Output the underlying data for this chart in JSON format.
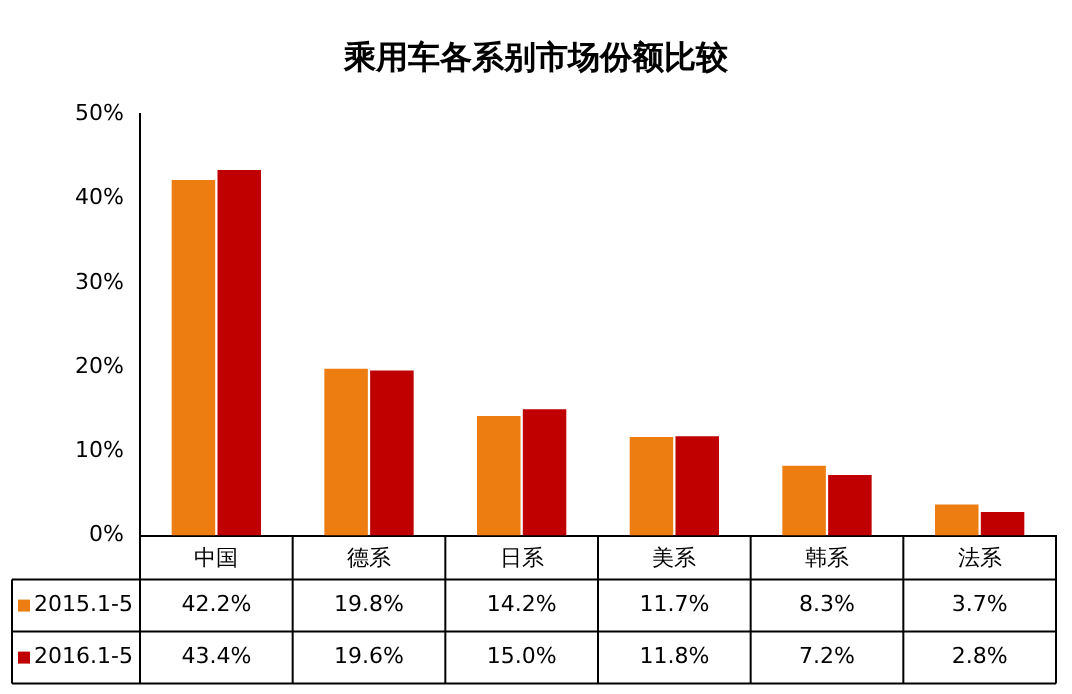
{
  "chart_data": {
    "type": "bar",
    "title": "乘用车各系别市场份额比较",
    "categories": [
      "中国",
      "德系",
      "日系",
      "美系",
      "韩系",
      "法系"
    ],
    "series": [
      {
        "name": "2015.1-5",
        "color": "#ee7d11",
        "values": [
          42.2,
          19.8,
          14.2,
          11.7,
          8.3,
          3.7
        ],
        "value_labels": [
          "42.2%",
          "19.8%",
          "14.2%",
          "11.7%",
          "8.3%",
          "3.7%"
        ]
      },
      {
        "name": "2016.1-5",
        "color": "#c00000",
        "values": [
          43.4,
          19.6,
          15.0,
          11.8,
          7.2,
          2.8
        ],
        "value_labels": [
          "43.4%",
          "19.6%",
          "15.0%",
          "11.8%",
          "7.2%",
          "2.8%"
        ]
      }
    ],
    "legend": "bottom left",
    "ylim": [
      0,
      50
    ],
    "yticks": [
      {
        "value": 0,
        "label": "0%"
      },
      {
        "value": 10,
        "label": "10%"
      },
      {
        "value": 20,
        "label": "20%"
      },
      {
        "value": 30,
        "label": "30%"
      },
      {
        "value": 40,
        "label": "40%"
      },
      {
        "value": 50,
        "label": "50%"
      }
    ]
  }
}
